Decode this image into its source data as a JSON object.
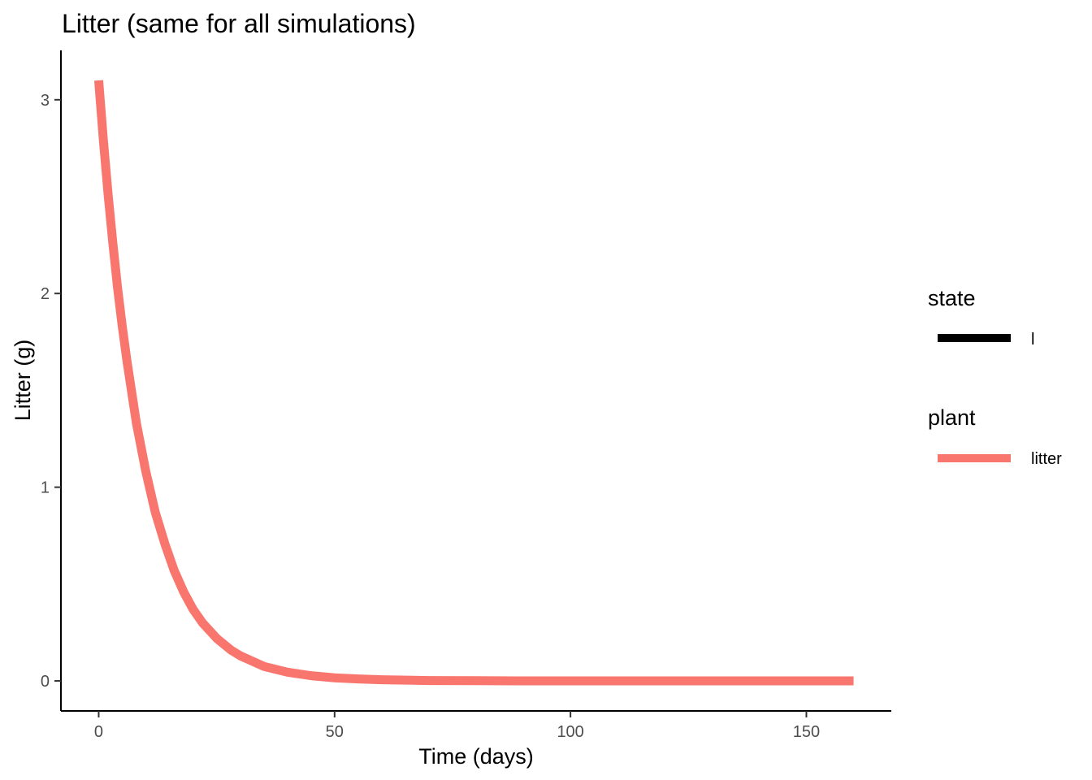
{
  "chart_data": {
    "type": "line",
    "title": "Litter (same for all simulations)",
    "xlabel": "Time (days)",
    "ylabel": "Litter (g)",
    "xlim": [
      -8,
      168
    ],
    "ylim": [
      -0.155,
      3.255
    ],
    "x_ticks": [
      0,
      50,
      100,
      150
    ],
    "y_ticks": [
      0,
      1,
      2,
      3
    ],
    "x_tick_labels": [
      "0",
      "50",
      "100",
      "150"
    ],
    "y_tick_labels": [
      "0",
      "1",
      "2",
      "3"
    ],
    "grid": false,
    "legend_position": "right",
    "legend": [
      {
        "title": "state",
        "entries": [
          {
            "label": "l",
            "color": "#000000"
          }
        ]
      },
      {
        "title": "plant",
        "entries": [
          {
            "label": "litter",
            "color": "#F8766D"
          }
        ]
      }
    ],
    "series": [
      {
        "color": "#F8766D",
        "x": [
          0,
          1,
          2,
          3,
          4,
          5,
          6,
          8,
          10,
          12,
          14,
          16,
          18,
          20,
          22,
          25,
          28,
          30,
          35,
          40,
          45,
          50,
          55,
          60,
          70,
          80,
          90,
          100,
          110,
          120,
          130,
          140,
          150,
          160
        ],
        "y": [
          3.1,
          2.79,
          2.51,
          2.26,
          2.03,
          1.83,
          1.65,
          1.33,
          1.08,
          0.87,
          0.71,
          0.57,
          0.46,
          0.37,
          0.3,
          0.22,
          0.16,
          0.13,
          0.075,
          0.045,
          0.027,
          0.016,
          0.01,
          0.006,
          0.002,
          0.001,
          0.0003,
          0.0001,
          0.0,
          0.0,
          0.0,
          0.0,
          0.0,
          0.0
        ]
      }
    ]
  }
}
